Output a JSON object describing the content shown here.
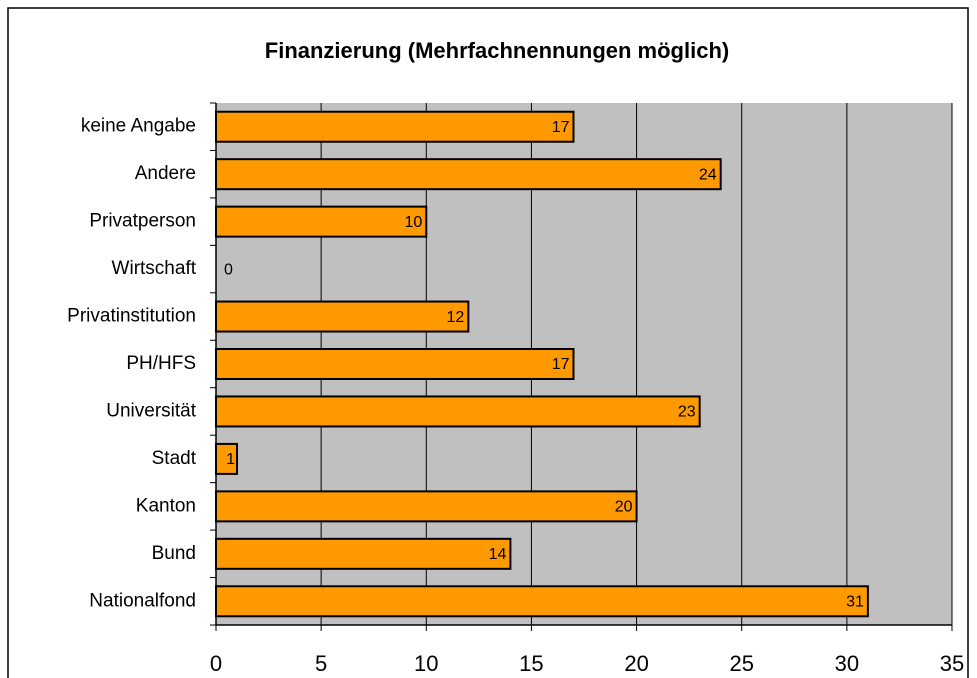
{
  "chart_data": {
    "type": "bar",
    "orientation": "horizontal",
    "title": "Finanzierung (Mehrfachnennungen möglich)",
    "categories": [
      "keine Angabe",
      "Andere",
      "Privatperson",
      "Wirtschaft",
      "Privatinstitution",
      "PH/HFS",
      "Universität",
      "Stadt",
      "Kanton",
      "Bund",
      "Nationalfond"
    ],
    "values": [
      17,
      24,
      10,
      0,
      12,
      17,
      23,
      1,
      20,
      14,
      31
    ],
    "color": "#ff9900",
    "xlim": [
      0,
      35
    ],
    "xticks": [
      0,
      5,
      10,
      15,
      20,
      25,
      30,
      35
    ],
    "grid": true
  }
}
